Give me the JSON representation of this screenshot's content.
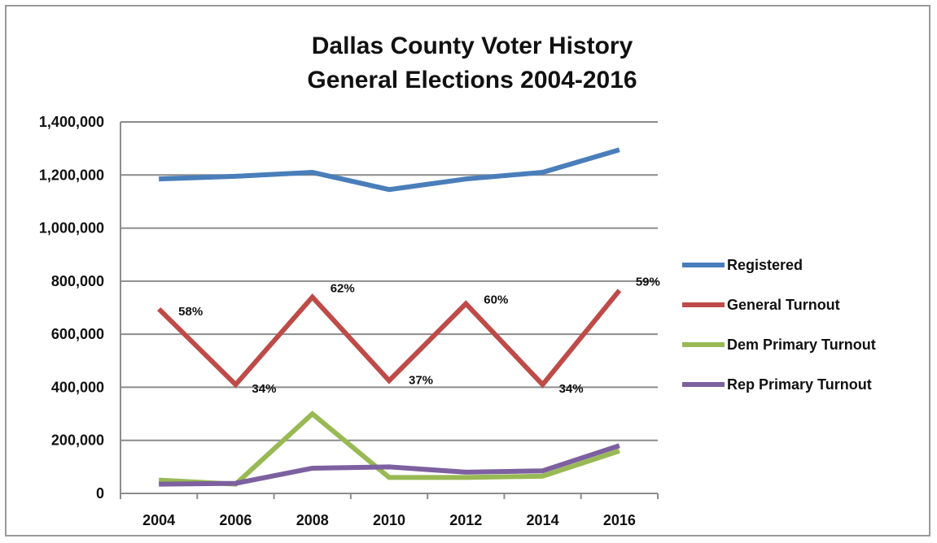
{
  "chart_data": {
    "type": "line",
    "title_lines": [
      "Dallas County Voter History",
      "General Elections 2004-2016"
    ],
    "categories": [
      "2004",
      "2006",
      "2008",
      "2010",
      "2012",
      "2014",
      "2016"
    ],
    "ylim": [
      0,
      1400000
    ],
    "yticks": [
      0,
      200000,
      400000,
      600000,
      800000,
      1000000,
      1200000,
      1400000
    ],
    "ytick_labels": [
      "0",
      "200,000",
      "400,000",
      "600,000",
      "800,000",
      "1,000,000",
      "1,200,000",
      "1,400,000"
    ],
    "grid": true,
    "legend_position": "right",
    "series": [
      {
        "name": "Registered",
        "color": "#4a7ebb",
        "values": [
          1185000,
          1195000,
          1210000,
          1145000,
          1185000,
          1210000,
          1295000
        ]
      },
      {
        "name": "General Turnout",
        "color": "#be4b48",
        "values": [
          695000,
          410000,
          740000,
          425000,
          715000,
          410000,
          765000
        ],
        "data_labels": [
          "58%",
          "34%",
          "62%",
          "37%",
          "60%",
          "34%",
          "59%"
        ]
      },
      {
        "name": "Dem Primary Turnout",
        "color": "#98b954",
        "values": [
          50000,
          35000,
          300000,
          60000,
          60000,
          65000,
          160000
        ]
      },
      {
        "name": "Rep Primary Turnout",
        "color": "#7d60a0",
        "values": [
          35000,
          38000,
          95000,
          100000,
          80000,
          85000,
          180000
        ]
      }
    ]
  }
}
